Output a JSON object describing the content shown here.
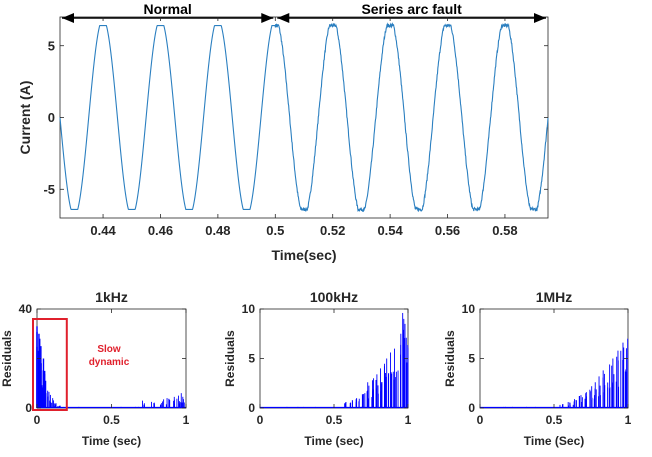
{
  "chart_data": [
    {
      "type": "line",
      "xlabel": "Time(sec)",
      "ylabel": "Current (A)",
      "xlim": [
        0.425,
        0.595
      ],
      "ylim": [
        -7,
        7
      ],
      "x_ticks": [
        0.44,
        0.46,
        0.48,
        0.5,
        0.52,
        0.54,
        0.56,
        0.58
      ],
      "x_tick_labels": [
        "0.44",
        "0.46",
        "0.48",
        "0.5",
        "0.52",
        "0.54",
        "0.56",
        "0.58"
      ],
      "y_ticks": [
        -5,
        0,
        5
      ],
      "y_tick_labels": [
        "-5",
        "0",
        "5"
      ],
      "series": [
        {
          "amplitude": 6.6,
          "frequency_hz": 50,
          "peak_times": [
            0.44,
            0.46,
            0.48,
            0.5,
            0.52,
            0.54,
            0.56,
            0.58
          ],
          "trough_times": [
            0.43,
            0.45,
            0.47,
            0.49,
            0.51,
            0.53,
            0.55,
            0.57,
            0.59
          ],
          "color": "#2b7fc0"
        }
      ],
      "annotations": [
        {
          "text": "Normal",
          "x_start": 0.425,
          "x_end": 0.5
        },
        {
          "text": "Series arc fault",
          "x_start": 0.5,
          "x_end": 0.595
        }
      ],
      "grid": false
    },
    {
      "type": "bar",
      "title": "1kHz",
      "xlabel": "Time (sec)",
      "ylabel": "Residuals",
      "xlim": [
        0,
        1
      ],
      "ylim": [
        0,
        40
      ],
      "x_ticks": [
        0,
        0.5,
        1
      ],
      "x_tick_labels": [
        "0",
        "0.5",
        "1"
      ],
      "y_ticks": [
        0,
        20,
        40
      ],
      "y_tick_labels": [
        "0",
        "20",
        "40"
      ],
      "color": "#0000ff",
      "highlight": {
        "text": "Slow dynamic",
        "x_range": [
          0,
          0.2
        ],
        "y_range": [
          0,
          35
        ],
        "color": "#e0202c"
      },
      "bursts": [
        {
          "x": 0.0,
          "y": 33
        },
        {
          "x": 0.01,
          "y": 30
        },
        {
          "x": 0.02,
          "y": 28
        },
        {
          "x": 0.03,
          "y": 25
        },
        {
          "x": 0.04,
          "y": 20
        },
        {
          "x": 0.05,
          "y": 15
        },
        {
          "x": 0.06,
          "y": 11
        },
        {
          "x": 0.08,
          "y": 7
        },
        {
          "x": 0.1,
          "y": 4
        },
        {
          "x": 0.12,
          "y": 2
        },
        {
          "x": 0.15,
          "y": 1
        },
        {
          "x": 0.72,
          "y": 3
        },
        {
          "x": 0.78,
          "y": 2.5
        },
        {
          "x": 0.84,
          "y": 3.5
        },
        {
          "x": 0.88,
          "y": 4
        },
        {
          "x": 0.92,
          "y": 4.5
        },
        {
          "x": 0.95,
          "y": 5
        },
        {
          "x": 0.98,
          "y": 6
        }
      ]
    },
    {
      "type": "bar",
      "title": "100kHz",
      "xlabel": "Time (sec)",
      "ylabel": "Residuals",
      "xlim": [
        0,
        1
      ],
      "ylim": [
        0,
        10
      ],
      "x_ticks": [
        0,
        0.5,
        1
      ],
      "x_tick_labels": [
        "0",
        "0.5",
        "1"
      ],
      "y_ticks": [
        0,
        5,
        10
      ],
      "y_tick_labels": [
        "0",
        "5",
        "10"
      ],
      "color": "#0000ff",
      "bursts": [
        {
          "x": 0.58,
          "y": 0.6
        },
        {
          "x": 0.62,
          "y": 0.8
        },
        {
          "x": 0.66,
          "y": 1.0
        },
        {
          "x": 0.7,
          "y": 1.5
        },
        {
          "x": 0.73,
          "y": 2.6
        },
        {
          "x": 0.76,
          "y": 3.0
        },
        {
          "x": 0.79,
          "y": 3.4
        },
        {
          "x": 0.82,
          "y": 4.0
        },
        {
          "x": 0.85,
          "y": 5.0
        },
        {
          "x": 0.88,
          "y": 5.6
        },
        {
          "x": 0.91,
          "y": 6.0
        },
        {
          "x": 0.94,
          "y": 7.5
        },
        {
          "x": 0.97,
          "y": 9.6
        },
        {
          "x": 0.99,
          "y": 8.5
        }
      ]
    },
    {
      "type": "bar",
      "title": "1MHz",
      "xlabel": "Time (Sec)",
      "ylabel": "Residuals",
      "xlim": [
        0,
        1
      ],
      "ylim": [
        0,
        10
      ],
      "x_ticks": [
        0,
        0.5,
        1
      ],
      "x_tick_labels": [
        "0",
        "0.5",
        "1"
      ],
      "y_ticks": [
        0,
        5,
        10
      ],
      "y_tick_labels": [
        "0",
        "5",
        "10"
      ],
      "color": "#0000ff",
      "bursts": [
        {
          "x": 0.55,
          "y": 0.4
        },
        {
          "x": 0.6,
          "y": 0.6
        },
        {
          "x": 0.64,
          "y": 0.9
        },
        {
          "x": 0.68,
          "y": 1.3
        },
        {
          "x": 0.72,
          "y": 1.6
        },
        {
          "x": 0.75,
          "y": 2.2
        },
        {
          "x": 0.78,
          "y": 2.6
        },
        {
          "x": 0.81,
          "y": 3.2
        },
        {
          "x": 0.84,
          "y": 3.8
        },
        {
          "x": 0.87,
          "y": 4.4
        },
        {
          "x": 0.9,
          "y": 5.0
        },
        {
          "x": 0.93,
          "y": 5.8
        },
        {
          "x": 0.96,
          "y": 6.6
        },
        {
          "x": 0.99,
          "y": 7.0
        }
      ]
    }
  ]
}
